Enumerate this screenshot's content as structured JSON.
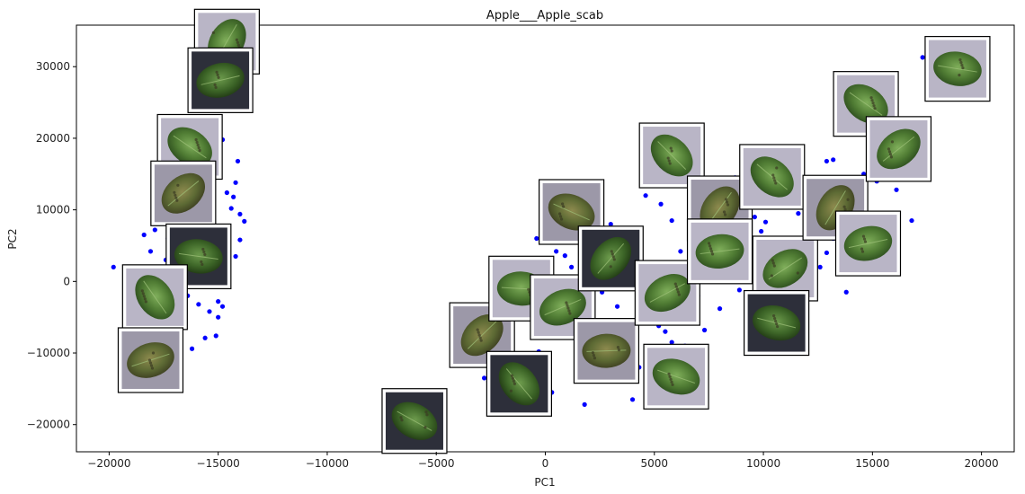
{
  "chart_data": {
    "type": "scatter",
    "title": "Apple___Apple_scab",
    "xlabel": "PC1",
    "ylabel": "PC2",
    "xlim": [
      -21500,
      21500
    ],
    "ylim": [
      -23800,
      35800
    ],
    "xticks": [
      -20000,
      -15000,
      -10000,
      -5000,
      0,
      5000,
      10000,
      15000,
      20000
    ],
    "xtick_labels": [
      "−20000",
      "−15000",
      "−10000",
      "−5000",
      "0",
      "5000",
      "10000",
      "15000",
      "20000"
    ],
    "yticks": [
      -20000,
      -10000,
      0,
      10000,
      20000,
      30000
    ],
    "ytick_labels": [
      "−20000",
      "−10000",
      "0",
      "10000",
      "20000",
      "30000"
    ],
    "grid": false,
    "legend": "none",
    "marker_color": "#0000ff",
    "points": [
      [
        -19800,
        2000
      ],
      [
        -18900,
        -3500
      ],
      [
        -18600,
        1200
      ],
      [
        -18100,
        4200
      ],
      [
        -18400,
        6500
      ],
      [
        -17900,
        7200
      ],
      [
        -17600,
        9000
      ],
      [
        -17400,
        3000
      ],
      [
        -16800,
        1500
      ],
      [
        -17200,
        -800
      ],
      [
        -16400,
        -2000
      ],
      [
        -15900,
        -3200
      ],
      [
        -15400,
        -4200
      ],
      [
        -15000,
        -2800
      ],
      [
        -14800,
        -3500
      ],
      [
        -14600,
        1200
      ],
      [
        -14200,
        3500
      ],
      [
        -14000,
        5800
      ],
      [
        -13800,
        8400
      ],
      [
        -14400,
        10200
      ],
      [
        -14600,
        12400
      ],
      [
        -14200,
        13800
      ],
      [
        -14100,
        16800
      ],
      [
        -14800,
        19800
      ],
      [
        -15300,
        22800
      ],
      [
        -15800,
        25200
      ],
      [
        -15100,
        -7600
      ],
      [
        -15600,
        -7900
      ],
      [
        -16200,
        -9400
      ],
      [
        -16700,
        -10800
      ],
      [
        -17100,
        -12100
      ],
      [
        -18200,
        -13600
      ],
      [
        -18500,
        -15200
      ],
      [
        -17600,
        -12700
      ],
      [
        -16900,
        -8800
      ],
      [
        -15000,
        -5000
      ],
      [
        -14700,
        2500
      ],
      [
        -14300,
        11800
      ],
      [
        -14000,
        9400
      ],
      [
        -16100,
        5400
      ],
      [
        -17300,
        6000
      ],
      [
        -18700,
        -9000
      ],
      [
        -19100,
        -6800
      ],
      [
        -15800,
        14200
      ],
      [
        -15200,
        17500
      ],
      [
        -3900,
        -6800
      ],
      [
        -3500,
        -8200
      ],
      [
        -3100,
        -5200
      ],
      [
        -2800,
        -13500
      ],
      [
        -2400,
        -12000
      ],
      [
        -2100,
        -10600
      ],
      [
        -1900,
        -9200
      ],
      [
        -1600,
        -8000
      ],
      [
        -1200,
        -4800
      ],
      [
        -900,
        -3000
      ],
      [
        -600,
        2800
      ],
      [
        -400,
        6000
      ],
      [
        200,
        7800
      ],
      [
        500,
        4200
      ],
      [
        800,
        -1000
      ],
      [
        1200,
        2000
      ],
      [
        1600,
        -3000
      ],
      [
        2000,
        -6000
      ],
      [
        2500,
        -8800
      ],
      [
        2800,
        -12000
      ],
      [
        3200,
        -13500
      ],
      [
        3600,
        -7400
      ],
      [
        4000,
        -16500
      ],
      [
        4300,
        -12000
      ],
      [
        4600,
        -9500
      ],
      [
        5000,
        -11200
      ],
      [
        5400,
        -15000
      ],
      [
        3000,
        8000
      ],
      [
        3400,
        6000
      ],
      [
        3800,
        3000
      ],
      [
        4100,
        1000
      ],
      [
        4400,
        -500
      ],
      [
        4700,
        -2500
      ],
      [
        4900,
        -4200
      ],
      [
        5200,
        -6200
      ],
      [
        5500,
        -7000
      ],
      [
        5800,
        -8500
      ],
      [
        6100,
        -5800
      ],
      [
        6400,
        -9000
      ],
      [
        6700,
        -4000
      ],
      [
        7000,
        -2000
      ],
      [
        7300,
        -6800
      ],
      [
        7600,
        2000
      ],
      [
        7900,
        5000
      ],
      [
        8200,
        8000
      ],
      [
        8400,
        10500
      ],
      [
        8700,
        14500
      ],
      [
        9000,
        12500
      ],
      [
        9300,
        11000
      ],
      [
        9600,
        9000
      ],
      [
        9900,
        7000
      ],
      [
        10200,
        5000
      ],
      [
        10500,
        3000
      ],
      [
        10800,
        1000
      ],
      [
        11100,
        -1000
      ],
      [
        11400,
        -3000
      ],
      [
        11700,
        -5000
      ],
      [
        12000,
        -2000
      ],
      [
        12300,
        0
      ],
      [
        12600,
        2000
      ],
      [
        12900,
        4000
      ],
      [
        13200,
        6000
      ],
      [
        13400,
        8000
      ],
      [
        13100,
        11500
      ],
      [
        12800,
        13500
      ],
      [
        12900,
        16800
      ],
      [
        13200,
        17000
      ],
      [
        14100,
        13800
      ],
      [
        14600,
        15000
      ],
      [
        15200,
        14000
      ],
      [
        15600,
        16500
      ],
      [
        16100,
        12800
      ],
      [
        16800,
        8500
      ],
      [
        17300,
        31300
      ],
      [
        13800,
        -1500
      ],
      [
        14400,
        2800
      ],
      [
        11800,
        -6500
      ],
      [
        10600,
        -8200
      ],
      [
        9800,
        -4800
      ],
      [
        6200,
        4200
      ],
      [
        5800,
        8500
      ],
      [
        6900,
        10500
      ],
      [
        7400,
        12500
      ],
      [
        4600,
        12000
      ],
      [
        5300,
        10800
      ],
      [
        2200,
        4600
      ],
      [
        1700,
        9600
      ],
      [
        900,
        3600
      ],
      [
        2600,
        -1500
      ],
      [
        3300,
        -3500
      ],
      [
        5100,
        1200
      ],
      [
        6300,
        -1200
      ],
      [
        8000,
        -3800
      ],
      [
        8900,
        -1200
      ],
      [
        9400,
        2600
      ],
      [
        10100,
        8300
      ],
      [
        11600,
        9500
      ],
      [
        12200,
        7400
      ],
      [
        1400,
        -8200
      ],
      [
        -300,
        -9800
      ],
      [
        -2600,
        -14000
      ],
      [
        -1100,
        -12600
      ],
      [
        300,
        -15500
      ],
      [
        1800,
        -17200
      ],
      [
        6800,
        -15400
      ]
    ],
    "thumbnails": [
      {
        "label": "thumbnail-1",
        "x": -14600,
        "y": 33500,
        "style": "gray"
      },
      {
        "label": "thumbnail-2",
        "x": -14900,
        "y": 28100,
        "style": "dark"
      },
      {
        "label": "thumbnail-3",
        "x": -16300,
        "y": 18800,
        "style": "gray"
      },
      {
        "label": "thumbnail-4",
        "x": -16600,
        "y": 12300,
        "style": "brown"
      },
      {
        "label": "thumbnail-5",
        "x": -15900,
        "y": 3500,
        "style": "dark"
      },
      {
        "label": "thumbnail-6",
        "x": -17900,
        "y": -2200,
        "style": "gray"
      },
      {
        "label": "thumbnail-7",
        "x": -18100,
        "y": -11000,
        "style": "brown"
      },
      {
        "label": "thumbnail-8",
        "x": -6000,
        "y": -19500,
        "style": "dark"
      },
      {
        "label": "thumbnail-9",
        "x": -2900,
        "y": -7500,
        "style": "brown"
      },
      {
        "label": "thumbnail-10",
        "x": -1100,
        "y": -1000,
        "style": "gray"
      },
      {
        "label": "thumbnail-11",
        "x": -1200,
        "y": -14300,
        "style": "dark"
      },
      {
        "label": "thumbnail-12",
        "x": 800,
        "y": -3600,
        "style": "gray"
      },
      {
        "label": "thumbnail-13",
        "x": 1200,
        "y": 9700,
        "style": "brown"
      },
      {
        "label": "thumbnail-14",
        "x": 3000,
        "y": 3200,
        "style": "dark"
      },
      {
        "label": "thumbnail-15",
        "x": 2800,
        "y": -9700,
        "style": "brown"
      },
      {
        "label": "thumbnail-16",
        "x": 5800,
        "y": 17600,
        "style": "gray"
      },
      {
        "label": "thumbnail-17",
        "x": 5600,
        "y": -1600,
        "style": "gray"
      },
      {
        "label": "thumbnail-18",
        "x": 6000,
        "y": -13300,
        "style": "gray"
      },
      {
        "label": "thumbnail-19",
        "x": 8000,
        "y": 10200,
        "style": "brown"
      },
      {
        "label": "thumbnail-20",
        "x": 8000,
        "y": 4200,
        "style": "gray"
      },
      {
        "label": "thumbnail-21",
        "x": 10400,
        "y": 14600,
        "style": "gray"
      },
      {
        "label": "thumbnail-22",
        "x": 11000,
        "y": 1800,
        "style": "gray"
      },
      {
        "label": "thumbnail-23",
        "x": 10600,
        "y": -5800,
        "style": "dark"
      },
      {
        "label": "thumbnail-24",
        "x": 13300,
        "y": 10300,
        "style": "brown"
      },
      {
        "label": "thumbnail-25",
        "x": 14800,
        "y": 5300,
        "style": "gray"
      },
      {
        "label": "thumbnail-26",
        "x": 14700,
        "y": 24800,
        "style": "gray"
      },
      {
        "label": "thumbnail-27",
        "x": 16200,
        "y": 18500,
        "style": "gray"
      },
      {
        "label": "thumbnail-28",
        "x": 18900,
        "y": 29700,
        "style": "gray"
      }
    ]
  }
}
